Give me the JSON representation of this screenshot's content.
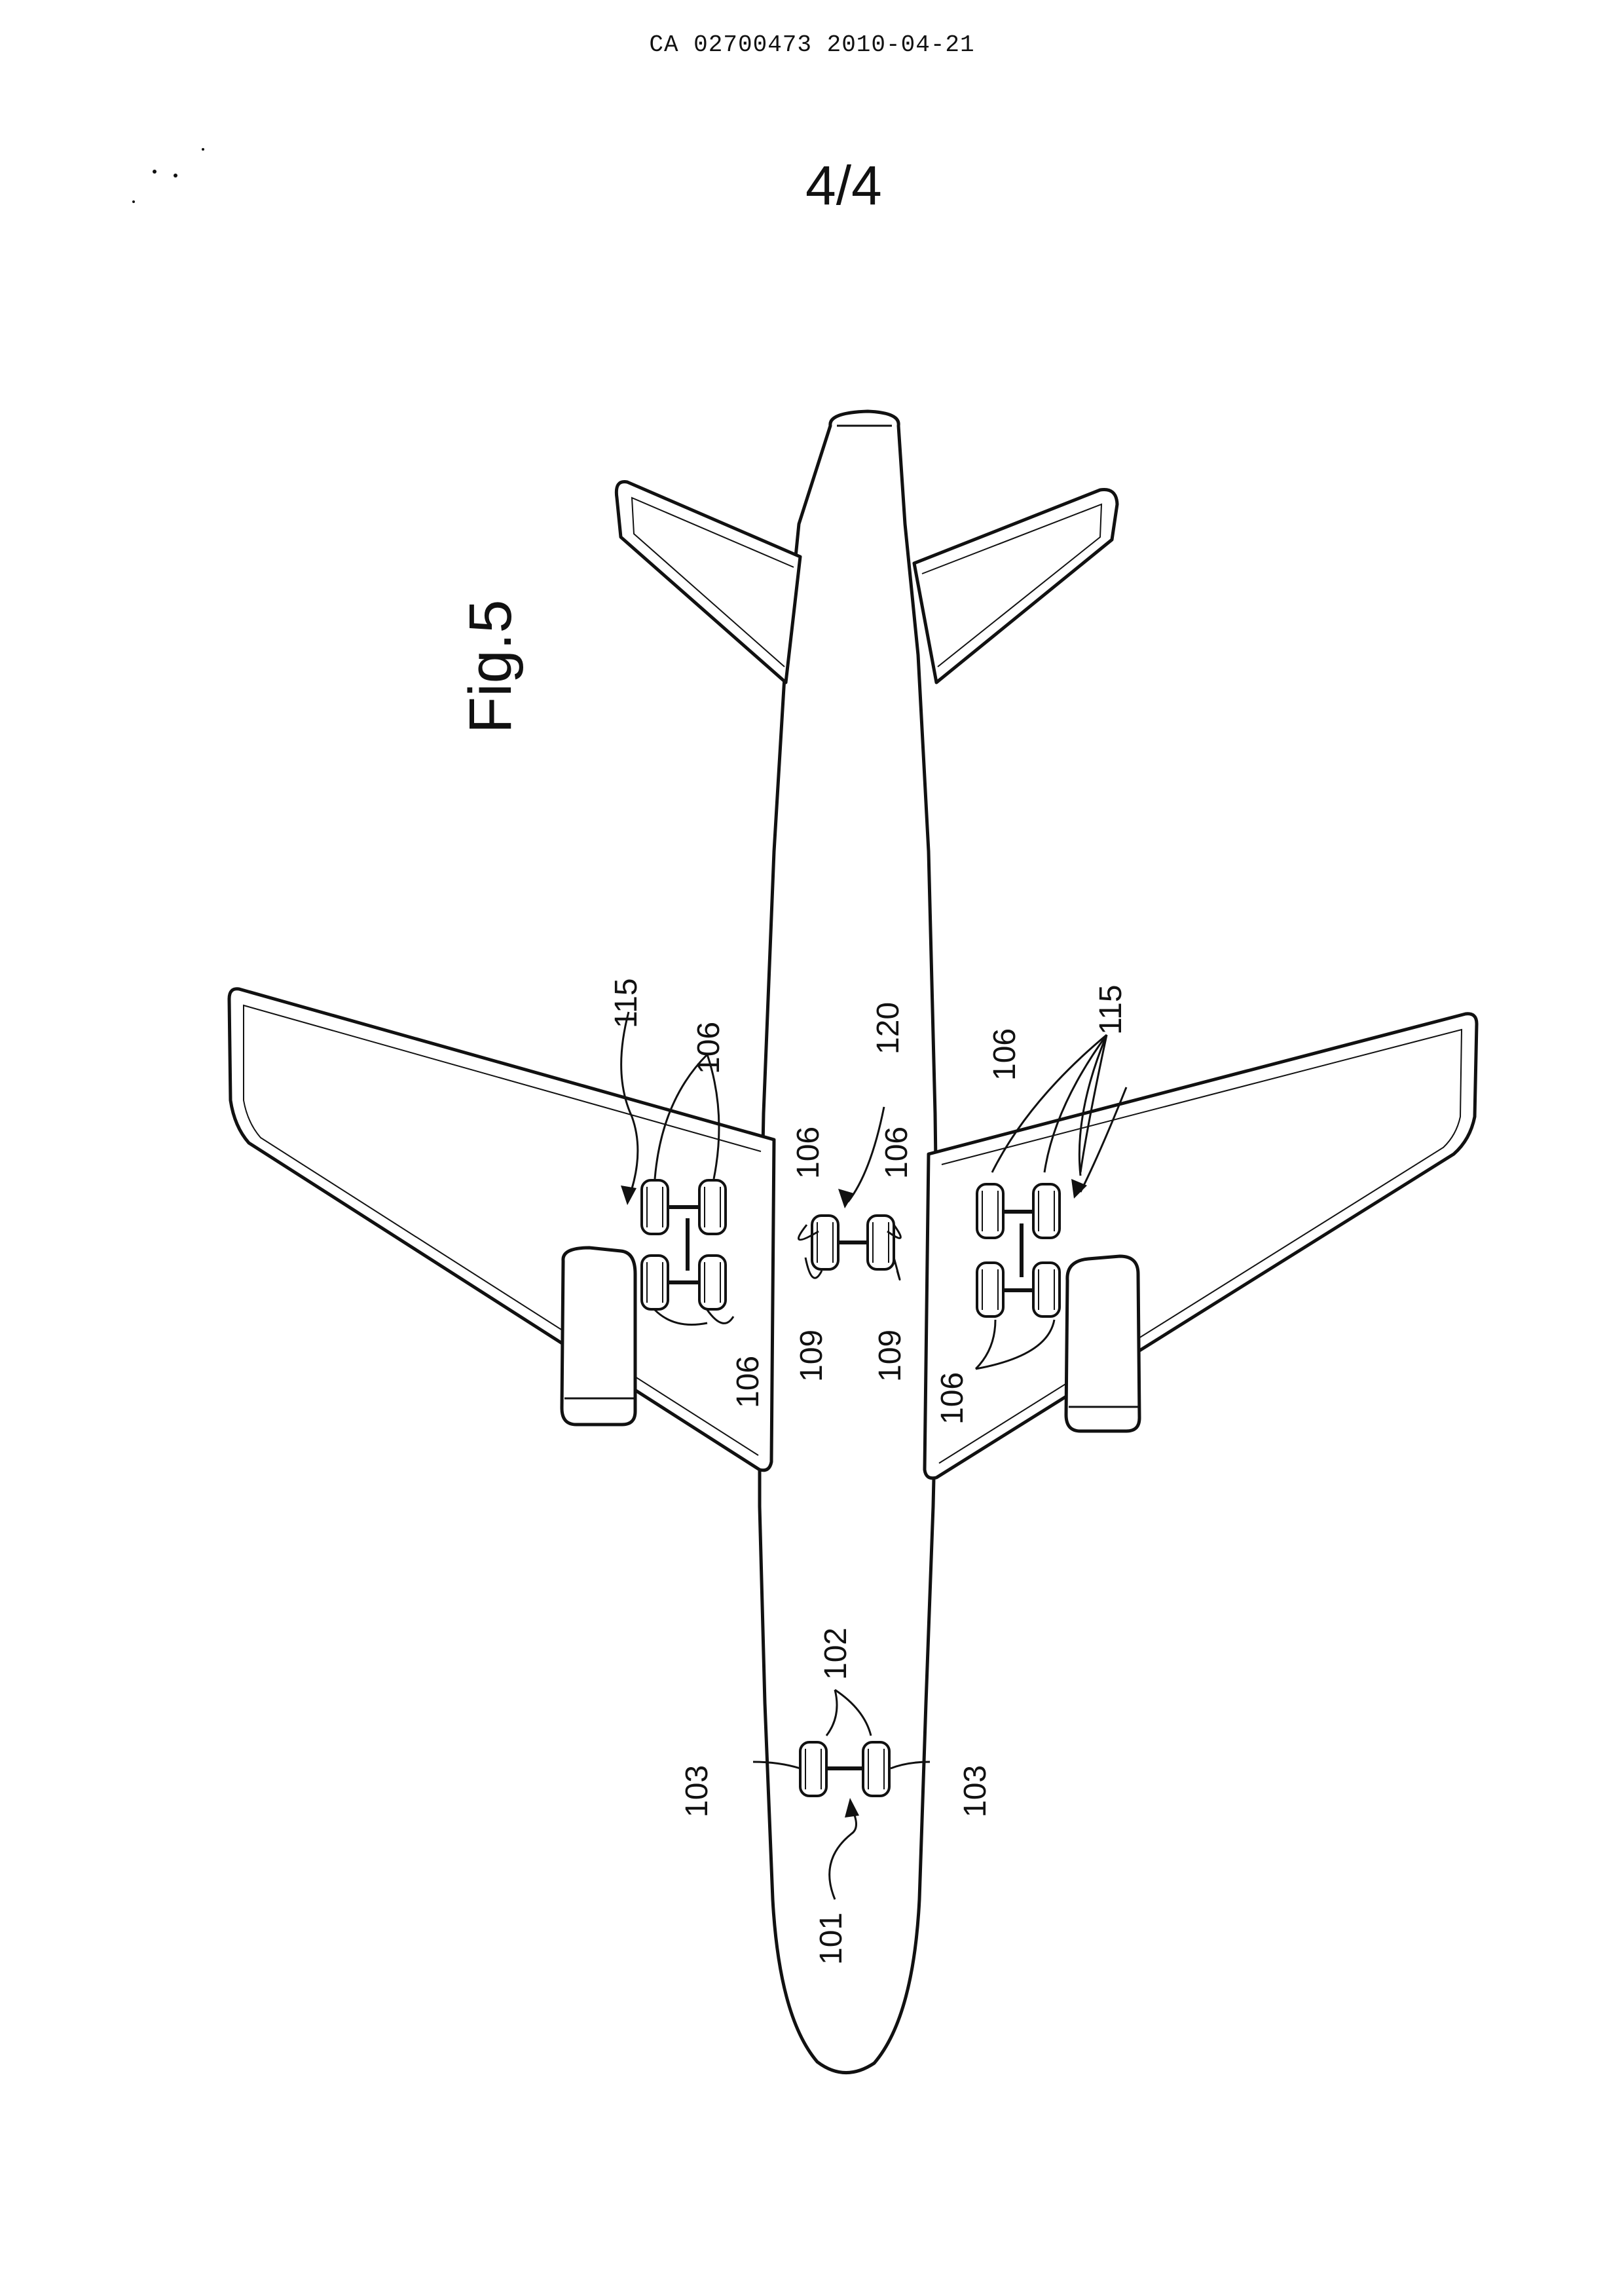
{
  "header": {
    "doc_id": "CA 02700473 2010-04-21"
  },
  "sheet": {
    "number": "4/4"
  },
  "figure": {
    "label": "Fig.5"
  },
  "refs": {
    "r101": "101",
    "r102": "102",
    "r103": "103",
    "r106": "106",
    "r109": "109",
    "r115": "115",
    "r120": "120"
  }
}
